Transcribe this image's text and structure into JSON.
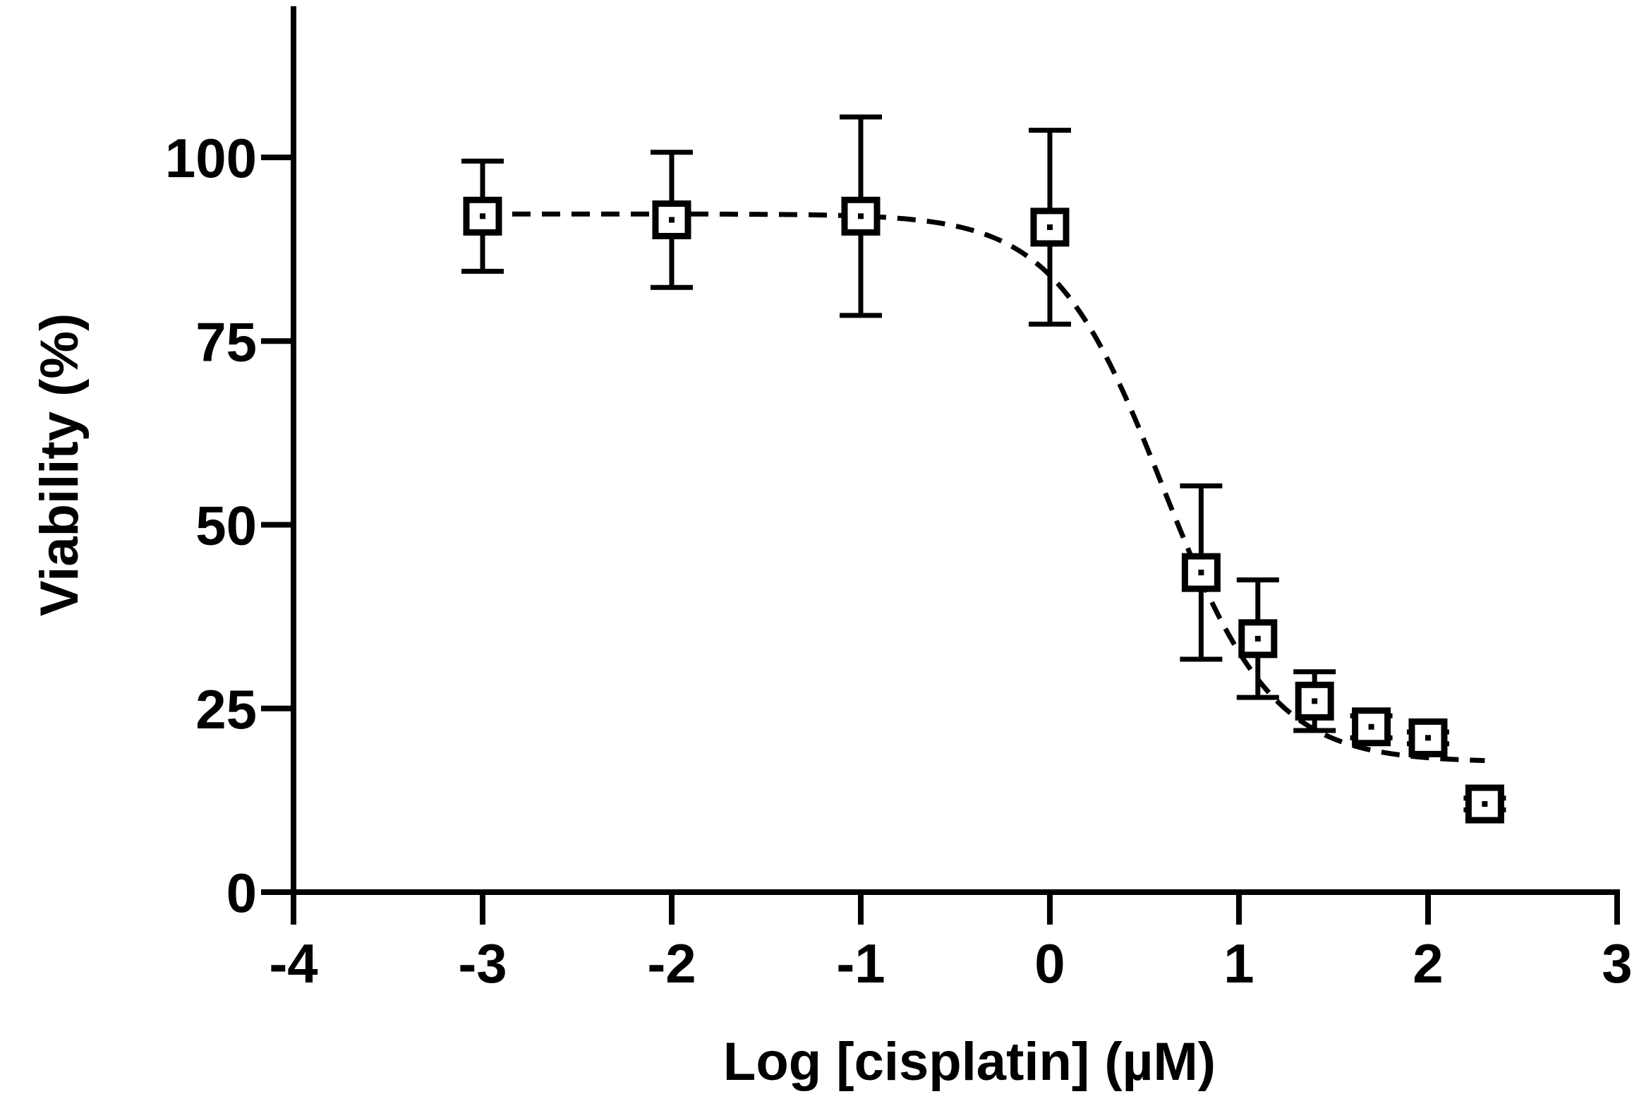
{
  "chart_data": {
    "type": "scatter",
    "title": "",
    "xlabel": "Log [cisplatin] (µM)",
    "ylabel": "Viability (%)",
    "xlim": [
      -4,
      3
    ],
    "ylim": [
      0,
      120
    ],
    "x_ticks": [
      -4,
      -3,
      -2,
      -1,
      0,
      1,
      2,
      3
    ],
    "y_ticks": [
      0,
      25,
      50,
      75,
      100
    ],
    "x_tick_labels": [
      "-4",
      "-3",
      "-2",
      "-1",
      "0",
      "1",
      "2",
      "3"
    ],
    "y_tick_labels": [
      "0",
      "25",
      "50",
      "75",
      "100"
    ],
    "grid": false,
    "legend": "none",
    "series": [
      {
        "marker": "open-square",
        "color": "#000000",
        "points": [
          {
            "x": -3.0,
            "y": 92.0,
            "err": 7.5
          },
          {
            "x": -2.0,
            "y": 91.5,
            "err": 9.2
          },
          {
            "x": -1.0,
            "y": 92.0,
            "err": 13.5
          },
          {
            "x": 0.0,
            "y": 90.5,
            "err": 13.2
          },
          {
            "x": 0.8,
            "y": 43.5,
            "err": 11.8
          },
          {
            "x": 1.1,
            "y": 34.5,
            "err": 8.0
          },
          {
            "x": 1.4,
            "y": 26.0,
            "err": 4.0
          },
          {
            "x": 1.7,
            "y": 22.5,
            "err": 1.5
          },
          {
            "x": 2.0,
            "y": 21.0,
            "err": 0.8
          },
          {
            "x": 2.3,
            "y": 12.0,
            "err": 0.8
          }
        ]
      }
    ],
    "fit_curve": {
      "style": "dashed",
      "model": "sigmoid",
      "top": 92.3,
      "bottom": 17.7,
      "log_ec50": 0.6,
      "hill_slope": -1.5,
      "x_range": [
        -3,
        2.3
      ]
    }
  }
}
